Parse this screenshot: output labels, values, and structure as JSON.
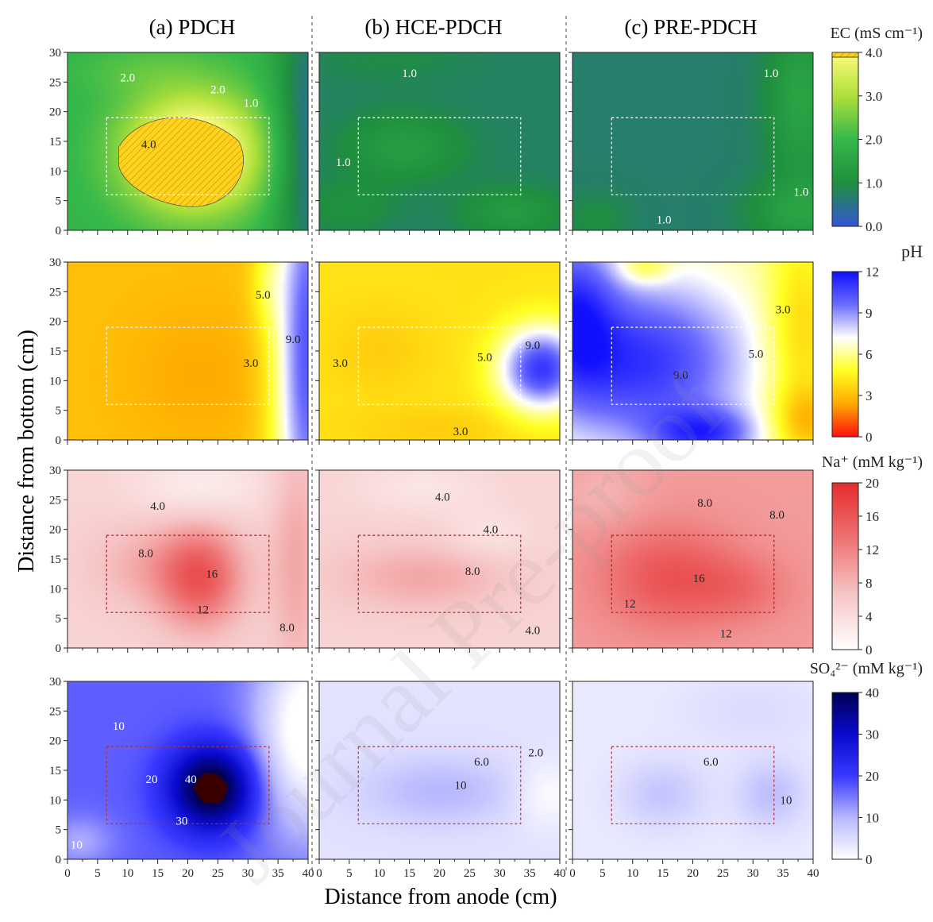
{
  "figure": {
    "ylabel": "Distance from bottom (cm)",
    "xlabel": "Distance from anode (cm)",
    "columns": [
      "(a) PDCH",
      "(b) HCE-PDCH",
      "(c) PRE-PDCH"
    ],
    "watermark": "Journal Pre-proof"
  },
  "chart_data": [
    {
      "type": "heatmap",
      "variable": "EC",
      "colorbar_title": "EC (mS cm⁻¹)",
      "colorbar_range": [
        0,
        4
      ],
      "colorbar_ticks": [
        "0.0",
        "1.0",
        "2.0",
        "3.0",
        "4.0"
      ],
      "colors": [
        "#3555d6",
        "#1f8f3e",
        "#35b84a",
        "#aee03a",
        "#fffc7a"
      ],
      "xlim": [
        0,
        40
      ],
      "ylim": [
        0,
        30
      ],
      "x_ticks": [
        0,
        5,
        10,
        15,
        20,
        25,
        30,
        35,
        40
      ],
      "y_ticks": [
        0,
        5,
        10,
        15,
        20,
        25,
        30
      ],
      "electrode_box": {
        "x": [
          6.5,
          33.5
        ],
        "y": [
          6,
          19
        ]
      },
      "panels": [
        {
          "name": "PDCH",
          "bg": 1.9,
          "blobs": [
            {
              "x": 21,
              "y": 13,
              "sx": 8,
              "sy": 7,
              "a": 2.8
            },
            {
              "x": 40,
              "y": 15,
              "sx": 4,
              "sy": 22,
              "a": -1.5
            },
            {
              "x": 12,
              "y": 27,
              "sx": 8,
              "sy": 3,
              "a": 0.3
            }
          ],
          "contours": [
            {
              "x": 10,
              "y": 25.8,
              "text": "2.0"
            },
            {
              "x": 25,
              "y": 23.8,
              "text": "2.0"
            },
            {
              "x": 30.5,
              "y": 21.5,
              "text": "1.0"
            },
            {
              "x": 13.5,
              "y": 14.5,
              "text": "4.0"
            }
          ]
        },
        {
          "name": "HCE-PDCH",
          "bg": 0.75,
          "blobs": [
            {
              "x": 14,
              "y": 14,
              "sx": 7,
              "sy": 4,
              "a": 0.6
            },
            {
              "x": 5,
              "y": 4,
              "sx": 5,
              "sy": 3,
              "a": 0.35
            },
            {
              "x": 32,
              "y": 3,
              "sx": 6,
              "sy": 3,
              "a": 0.55
            },
            {
              "x": 12,
              "y": 29,
              "sx": 9,
              "sy": 3,
              "a": 0.2
            }
          ],
          "contours": [
            {
              "x": 15,
              "y": 26.5,
              "text": "1.0"
            },
            {
              "x": 4,
              "y": 11.5,
              "text": "1.0"
            }
          ]
        },
        {
          "name": "PRE-PDCH",
          "bg": 0.7,
          "blobs": [
            {
              "x": 38,
              "y": 22,
              "sx": 4,
              "sy": 10,
              "a": 0.8
            },
            {
              "x": 38,
              "y": 3,
              "sx": 6,
              "sy": 4,
              "a": 0.7
            },
            {
              "x": 4,
              "y": 2,
              "sx": 4,
              "sy": 3,
              "a": 0.3
            }
          ],
          "contours": [
            {
              "x": 33,
              "y": 26.5,
              "text": "1.0"
            },
            {
              "x": 38,
              "y": 6.5,
              "text": "1.0"
            },
            {
              "x": 15.2,
              "y": 1.8,
              "text": "1.0"
            }
          ]
        }
      ]
    },
    {
      "type": "heatmap",
      "variable": "pH",
      "colorbar_title": "pH",
      "colorbar_range": [
        0,
        12
      ],
      "colorbar_ticks": [
        "0",
        "3",
        "6",
        "9",
        "12"
      ],
      "colors": [
        "#ff1010",
        "#ffaa00",
        "#ffff20",
        "#ffffff",
        "#6c6cff",
        "#1010ff"
      ],
      "xlim": [
        0,
        40
      ],
      "ylim": [
        0,
        30
      ],
      "x_ticks": [
        0,
        5,
        10,
        15,
        20,
        25,
        30,
        35,
        40
      ],
      "y_ticks": [
        0,
        5,
        10,
        15,
        20,
        25,
        30
      ],
      "electrode_box": {
        "x": [
          6.5,
          33.5
        ],
        "y": [
          6,
          19
        ]
      },
      "panels": [
        {
          "name": "PDCH",
          "bg": 3.0,
          "blobs": [
            {
              "x": 22,
              "y": 11,
              "sx": 8,
              "sy": 8,
              "a": -0.6
            },
            {
              "x": 40,
              "y": 15,
              "sx": 4,
              "sy": 30,
              "a": 7.2
            },
            {
              "x": 33,
              "y": 26,
              "sx": 2,
              "sy": 5,
              "a": 1.2
            }
          ],
          "contours": [
            {
              "x": 32.5,
              "y": 24.5,
              "text": "5.0"
            },
            {
              "x": 37.5,
              "y": 17,
              "text": "9.0"
            },
            {
              "x": 30.5,
              "y": 13,
              "text": "3.0"
            }
          ]
        },
        {
          "name": "HCE-PDCH",
          "bg": 4.0,
          "blobs": [
            {
              "x": 37,
              "y": 12,
              "sx": 5,
              "sy": 5,
              "a": 7
            },
            {
              "x": 10,
              "y": 15,
              "sx": 6,
              "sy": 5,
              "a": -0.6
            },
            {
              "x": 20,
              "y": 2,
              "sx": 10,
              "sy": 2.5,
              "a": -0.6
            }
          ],
          "contours": [
            {
              "x": 3.5,
              "y": 13,
              "text": "3.0"
            },
            {
              "x": 27.5,
              "y": 14,
              "text": "5.0"
            },
            {
              "x": 35.5,
              "y": 16,
              "text": "9.0"
            },
            {
              "x": 23.5,
              "y": 1.5,
              "text": "3.0"
            }
          ]
        },
        {
          "name": "PRE-PDCH",
          "bg": 6.0,
          "blobs": [
            {
              "x": 12,
              "y": 13,
              "sx": 12,
              "sy": 10,
              "a": 5
            },
            {
              "x": 0,
              "y": 22,
              "sx": 5,
              "sy": 10,
              "a": 4
            },
            {
              "x": 22,
              "y": 1,
              "sx": 6,
              "sy": 3,
              "a": 4
            },
            {
              "x": 38,
              "y": 18,
              "sx": 4,
              "sy": 12,
              "a": -2.5
            },
            {
              "x": 39,
              "y": 3,
              "sx": 4,
              "sy": 4,
              "a": -2.5
            },
            {
              "x": 12,
              "y": 29,
              "sx": 3,
              "sy": 2,
              "a": -2
            }
          ],
          "contours": [
            {
              "x": 35,
              "y": 22,
              "text": "3.0"
            },
            {
              "x": 30.5,
              "y": 14.5,
              "text": "5.0"
            },
            {
              "x": 18,
              "y": 11,
              "text": "9.0"
            }
          ]
        }
      ]
    },
    {
      "type": "heatmap",
      "variable": "Na+",
      "colorbar_title": "Na⁺ (mM kg⁻¹)",
      "colorbar_range": [
        0,
        20
      ],
      "colorbar_ticks": [
        "0",
        "4",
        "8",
        "12",
        "16",
        "20"
      ],
      "colors": [
        "#ffffff",
        "#f6c5c5",
        "#ee7272",
        "#e62c2c"
      ],
      "xlim": [
        0,
        40
      ],
      "ylim": [
        0,
        30
      ],
      "x_ticks": [
        0,
        5,
        10,
        15,
        20,
        25,
        30,
        35,
        40
      ],
      "y_ticks": [
        0,
        5,
        10,
        15,
        20,
        25,
        30
      ],
      "electrode_box": {
        "x": [
          6.5,
          33.5
        ],
        "y": [
          6,
          19
        ]
      },
      "panels": [
        {
          "name": "PDCH",
          "bg": 5,
          "blobs": [
            {
              "x": 22,
              "y": 12,
              "sx": 5,
              "sy": 6,
              "a": 11
            },
            {
              "x": 12,
              "y": 14,
              "sx": 6,
              "sy": 5,
              "a": 3
            },
            {
              "x": 22,
              "y": 27,
              "sx": 8,
              "sy": 4,
              "a": -3
            },
            {
              "x": 38,
              "y": 15,
              "sx": 3,
              "sy": 15,
              "a": 4
            }
          ],
          "contours": [
            {
              "x": 15,
              "y": 24,
              "text": "4.0"
            },
            {
              "x": 13,
              "y": 16,
              "text": "8.0"
            },
            {
              "x": 24,
              "y": 12.5,
              "text": "16"
            },
            {
              "x": 22.5,
              "y": 6.5,
              "text": "12"
            },
            {
              "x": 36.5,
              "y": 3.5,
              "text": "8.0"
            }
          ]
        },
        {
          "name": "HCE-PDCH",
          "bg": 5,
          "blobs": [
            {
              "x": 17,
              "y": 12,
              "sx": 10,
              "sy": 4,
              "a": 4
            },
            {
              "x": 28,
              "y": 19,
              "sx": 5,
              "sy": 3,
              "a": -2
            },
            {
              "x": 17,
              "y": 27,
              "sx": 8,
              "sy": 3,
              "a": -2
            }
          ],
          "contours": [
            {
              "x": 20.5,
              "y": 25.5,
              "text": "4.0"
            },
            {
              "x": 28.5,
              "y": 20,
              "text": "4.0"
            },
            {
              "x": 25.5,
              "y": 13,
              "text": "8.0"
            },
            {
              "x": 35.5,
              "y": 3,
              "text": "4.0"
            }
          ]
        },
        {
          "name": "PRE-PDCH",
          "bg": 10,
          "blobs": [
            {
              "x": 16,
              "y": 12,
              "sx": 8,
              "sy": 6,
              "a": 6
            },
            {
              "x": 28,
              "y": 10,
              "sx": 6,
              "sy": 4,
              "a": 3
            },
            {
              "x": 5,
              "y": 26,
              "sx": 5,
              "sy": 4,
              "a": -2
            }
          ],
          "contours": [
            {
              "x": 22,
              "y": 24.5,
              "text": "8.0"
            },
            {
              "x": 34,
              "y": 22.5,
              "text": "8.0"
            },
            {
              "x": 21,
              "y": 11.8,
              "text": "16"
            },
            {
              "x": 9.5,
              "y": 7.5,
              "text": "12"
            },
            {
              "x": 25.5,
              "y": 2.5,
              "text": "12"
            }
          ]
        }
      ]
    },
    {
      "type": "heatmap",
      "variable": "SO4 2-",
      "colorbar_title": "SO₄²⁻ (mM kg⁻¹)",
      "colorbar_range": [
        0,
        40
      ],
      "colorbar_ticks": [
        "0",
        "10",
        "20",
        "30",
        "40"
      ],
      "colors": [
        "#ffffff",
        "#b8b8ff",
        "#3838ff",
        "#0a0acc",
        "#000055"
      ],
      "special_color": "#3a0000",
      "xlim": [
        0,
        40
      ],
      "ylim": [
        0,
        30
      ],
      "x_ticks": [
        0,
        5,
        10,
        15,
        20,
        25,
        30,
        35,
        40
      ],
      "y_ticks": [
        0,
        5,
        10,
        15,
        20,
        25,
        30
      ],
      "electrode_box": {
        "x": [
          6.5,
          33.5
        ],
        "y": [
          6,
          19
        ]
      },
      "panels": [
        {
          "name": "PDCH",
          "bg": 17,
          "blobs": [
            {
              "x": 24,
              "y": 12,
              "sx": 5,
              "sy": 5,
              "a": 27
            },
            {
              "x": 40,
              "y": 22,
              "sx": 6,
              "sy": 12,
              "a": -20
            },
            {
              "x": 2,
              "y": 3,
              "sx": 4,
              "sy": 3,
              "a": -6
            }
          ],
          "contours": [
            {
              "x": 8.5,
              "y": 22.5,
              "text": "10"
            },
            {
              "x": 14,
              "y": 13.5,
              "text": "20"
            },
            {
              "x": 20.5,
              "y": 13.5,
              "text": "40"
            },
            {
              "x": 19,
              "y": 6.5,
              "text": "30"
            },
            {
              "x": 1.5,
              "y": 2.5,
              "text": "10"
            }
          ]
        },
        {
          "name": "HCE-PDCH",
          "bg": 4,
          "blobs": [
            {
              "x": 20,
              "y": 11.5,
              "sx": 9,
              "sy": 4,
              "a": 6
            },
            {
              "x": 38,
              "y": 11,
              "sx": 4,
              "sy": 4,
              "a": -4
            }
          ],
          "contours": [
            {
              "x": 27,
              "y": 16.5,
              "text": "6.0"
            },
            {
              "x": 36,
              "y": 18,
              "text": "2.0"
            },
            {
              "x": 23.5,
              "y": 12.5,
              "text": "10"
            }
          ]
        },
        {
          "name": "PRE-PDCH",
          "bg": 3,
          "blobs": [
            {
              "x": 15,
              "y": 11,
              "sx": 5,
              "sy": 4,
              "a": 5
            },
            {
              "x": 33,
              "y": 11,
              "sx": 4,
              "sy": 4,
              "a": 6
            },
            {
              "x": 30,
              "y": 25,
              "sx": 8,
              "sy": 4,
              "a": 2
            }
          ],
          "contours": [
            {
              "x": 23,
              "y": 16.5,
              "text": "6.0"
            },
            {
              "x": 35.5,
              "y": 10,
              "text": "10"
            }
          ]
        }
      ]
    }
  ]
}
